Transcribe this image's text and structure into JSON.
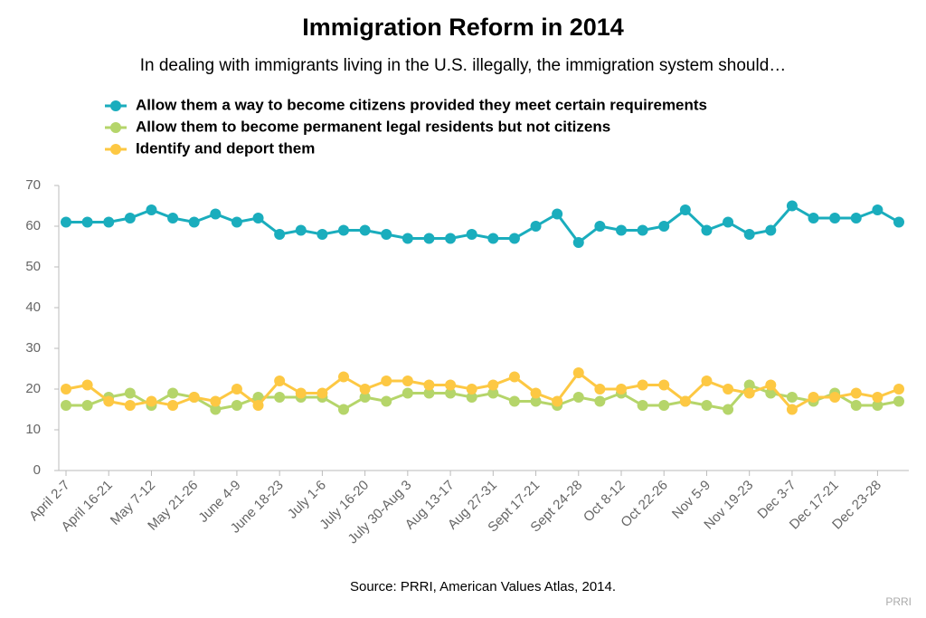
{
  "chart_data": {
    "type": "line",
    "title": "Immigration Reform in 2014",
    "subtitle": "In dealing with immigrants living in the U.S. illegally, the immigration system should…",
    "source": "Source: PRRI, American Values Atlas, 2014.",
    "credit": "PRRI",
    "categories": [
      "April 2-7",
      null,
      "April 16-21",
      null,
      "May 7-12",
      null,
      "May 21-26",
      null,
      "June 4-9",
      null,
      "June 18-23",
      null,
      "July 1-6",
      null,
      "July 16-20",
      null,
      "July 30-Aug 3",
      null,
      "Aug 13-17",
      null,
      "Aug 27-31",
      null,
      "Sept 17-21",
      null,
      "Sept 24-28",
      null,
      "Oct 8-12",
      null,
      "Oct 22-26",
      null,
      "Nov 5-9",
      null,
      "Nov 19-23",
      null,
      "Dec 3-7",
      null,
      "Dec 17-21",
      null,
      "Dec 23-28",
      null
    ],
    "series": [
      {
        "name": "Allow them a way to become citizens provided they meet certain requirements",
        "color": "#1aadbd",
        "values": [
          61,
          61,
          61,
          62,
          64,
          62,
          61,
          63,
          61,
          62,
          58,
          59,
          58,
          59,
          59,
          58,
          57,
          57,
          57,
          58,
          57,
          57,
          60,
          63,
          56,
          60,
          59,
          59,
          60,
          64,
          59,
          61,
          58,
          59,
          65,
          62,
          62,
          62,
          64,
          61
        ]
      },
      {
        "name": "Allow them to become permanent legal residents but not citizens",
        "color": "#b5d56a",
        "values": [
          16,
          16,
          18,
          19,
          16,
          19,
          18,
          15,
          16,
          18,
          18,
          18,
          18,
          15,
          18,
          17,
          19,
          19,
          19,
          18,
          19,
          17,
          17,
          16,
          18,
          17,
          19,
          16,
          16,
          17,
          16,
          15,
          21,
          19,
          18,
          17,
          19,
          16,
          16,
          17
        ]
      },
      {
        "name": "Identify and deport them",
        "color": "#fdc843",
        "values": [
          20,
          21,
          17,
          16,
          17,
          16,
          18,
          17,
          20,
          16,
          22,
          19,
          19,
          23,
          20,
          22,
          22,
          21,
          21,
          20,
          21,
          23,
          19,
          17,
          24,
          20,
          20,
          21,
          21,
          17,
          22,
          20,
          19,
          21,
          15,
          18,
          18,
          19,
          18,
          20
        ]
      }
    ],
    "ylim": [
      0,
      70
    ],
    "yticks": [
      0,
      10,
      20,
      30,
      40,
      50,
      60,
      70
    ],
    "grid": false
  }
}
